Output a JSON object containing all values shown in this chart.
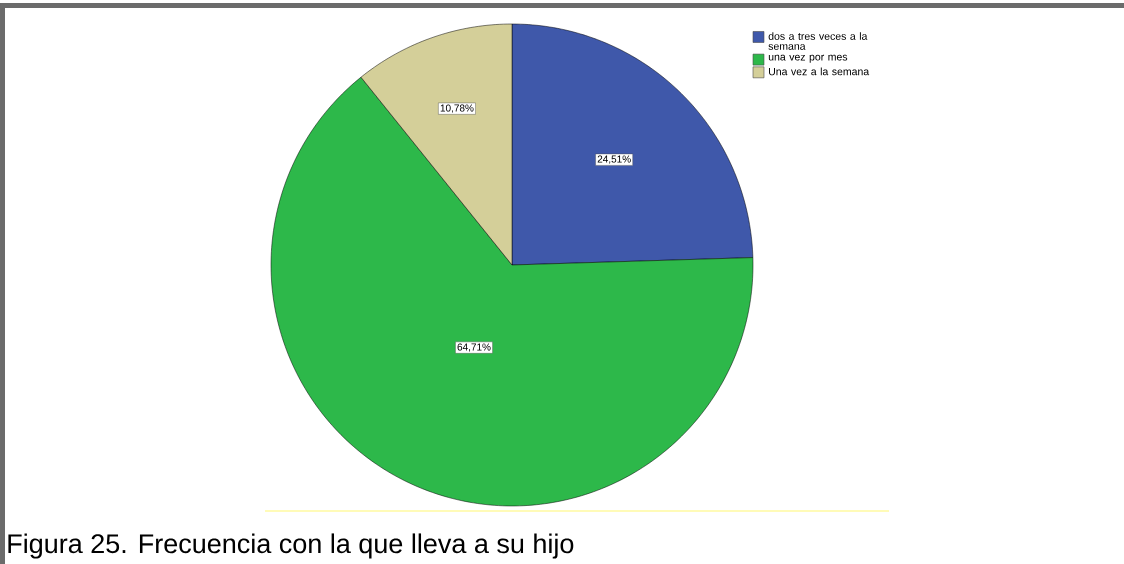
{
  "chart_data": {
    "type": "pie",
    "title": "Figura 25. Frecuencia con la que lleva a su hijo",
    "categories": [
      "dos a tres veces a la semana",
      "una vez por mes",
      "Una vez a la semana"
    ],
    "values": [
      24.51,
      64.71,
      10.78
    ],
    "colors": [
      "#3f58aa",
      "#2db84a",
      "#d4cf99"
    ],
    "value_labels": [
      "24,51%",
      "64,71%",
      "10,78%"
    ],
    "legend": "top right"
  }
}
